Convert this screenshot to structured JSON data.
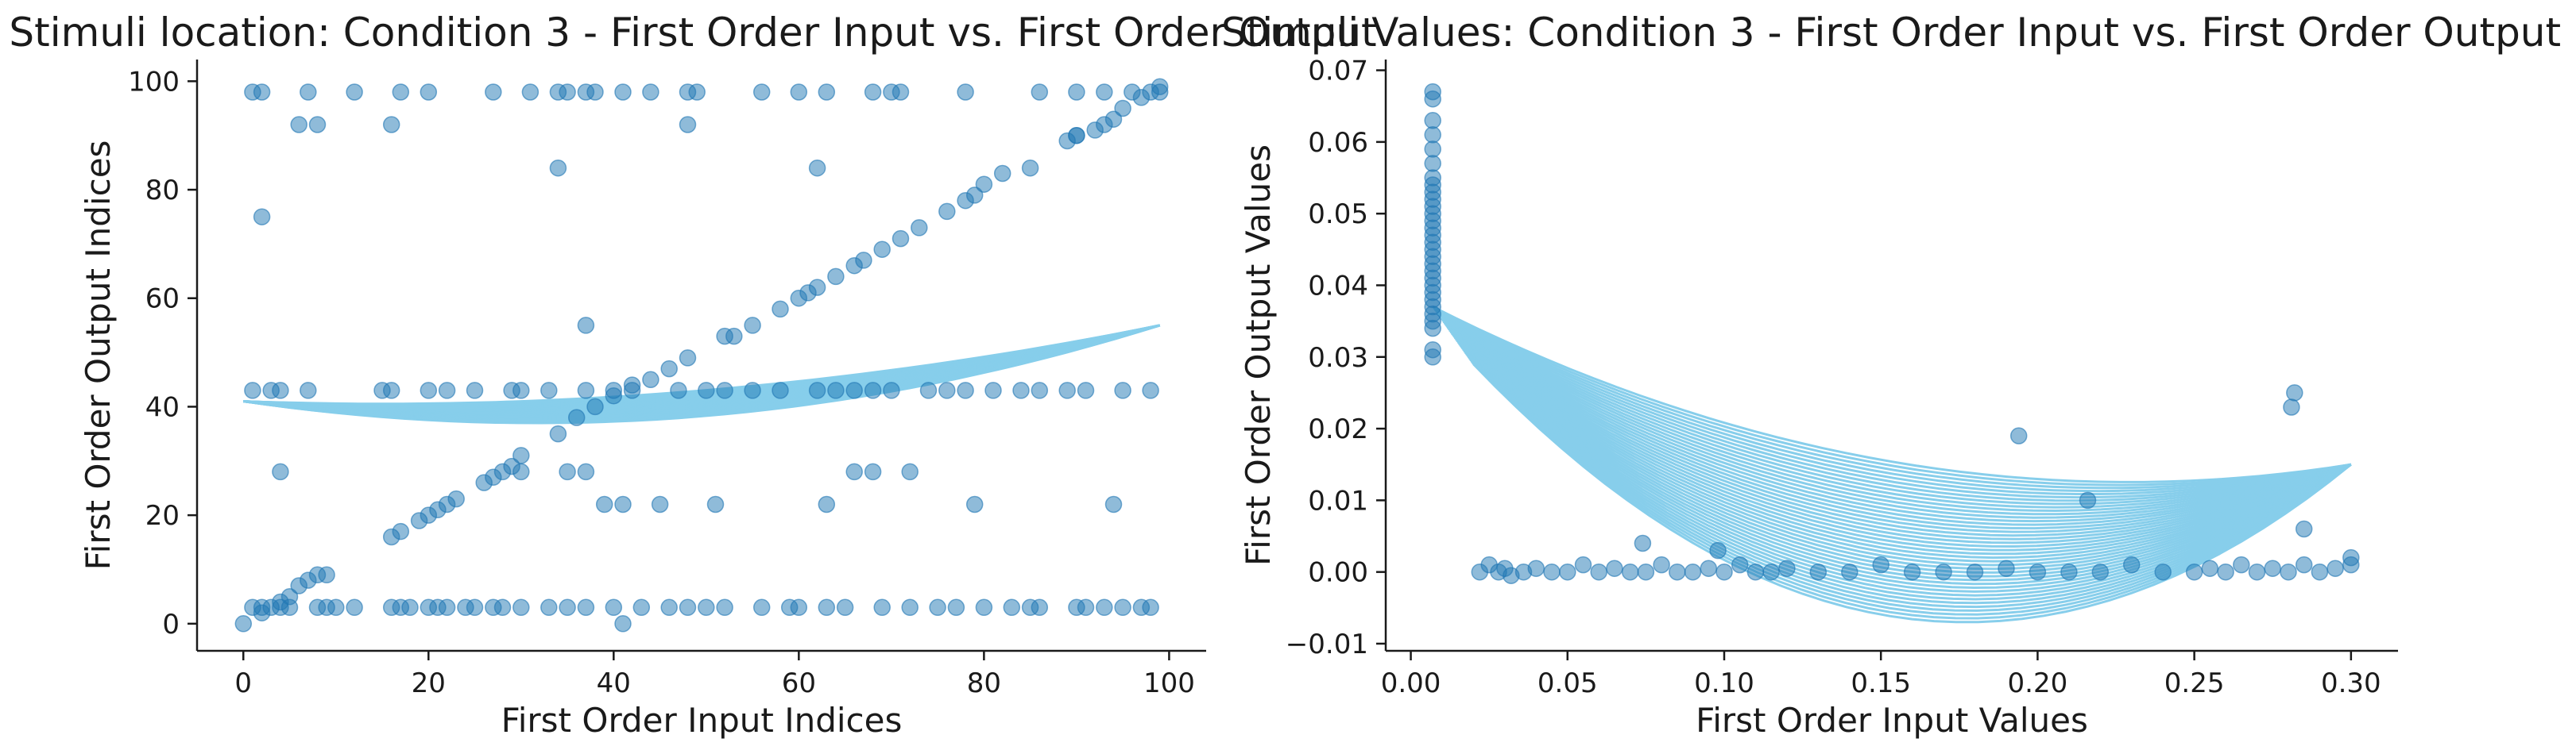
{
  "colors": {
    "points": "#1f77b4",
    "curve": "#87ceeb",
    "axis": "#1a1a1a"
  },
  "chart_data": [
    {
      "type": "scatter",
      "title": "Stimuli location: Condition 3 - First Order Input vs. First Order Output",
      "xlabel": "First Order Input Indices",
      "ylabel": "First Order Output Indices",
      "xlim": [
        -5,
        104
      ],
      "ylim": [
        -5,
        104
      ],
      "xticks": [
        0,
        20,
        40,
        60,
        80,
        100
      ],
      "yticks": [
        0,
        20,
        40,
        60,
        80,
        100
      ],
      "xtick_labels": [
        "0",
        "20",
        "40",
        "60",
        "80",
        "100"
      ],
      "ytick_labels": [
        "0",
        "20",
        "40",
        "60",
        "80",
        "100"
      ],
      "grid": false,
      "series": [
        {
          "kind": "points",
          "x": [
            0,
            2,
            2,
            4,
            5,
            6,
            7,
            8,
            9,
            16,
            17,
            19,
            20,
            21,
            22,
            23,
            26,
            27,
            28,
            29,
            30,
            34,
            36,
            38,
            40,
            42,
            44,
            46,
            48,
            52,
            53,
            55,
            58,
            60,
            61,
            62,
            64,
            66,
            67,
            69,
            71,
            73,
            76,
            78,
            79,
            80,
            82,
            85,
            89,
            90,
            92,
            93,
            95,
            97,
            99,
            1,
            2,
            7,
            12,
            17,
            20,
            27,
            31,
            34,
            35,
            37,
            38,
            41,
            44,
            48,
            49,
            56,
            60,
            63,
            68,
            70,
            71,
            78,
            86,
            90,
            93,
            96,
            98,
            99,
            6,
            8,
            16,
            34,
            37,
            48,
            62,
            90,
            94,
            2,
            1,
            3,
            4,
            7,
            15,
            16,
            20,
            22,
            25,
            29,
            30,
            33,
            37,
            40,
            42,
            47,
            50,
            52,
            55,
            58,
            62,
            64,
            66,
            68,
            70,
            74,
            76,
            78,
            81,
            84,
            86,
            89,
            91,
            95,
            98,
            4,
            8,
            10,
            17,
            20,
            22,
            25,
            28,
            30,
            33,
            35,
            37,
            40,
            41,
            43,
            46,
            48,
            50,
            52,
            56,
            59,
            60,
            63,
            65,
            69,
            72,
            75,
            77,
            80,
            83,
            85,
            86,
            90,
            91,
            93,
            95,
            97,
            98,
            1,
            3,
            5,
            9,
            12,
            16,
            18,
            21,
            24,
            27,
            4,
            30,
            35,
            37,
            39,
            41,
            45,
            51,
            63,
            66,
            68,
            72,
            79,
            94
          ],
          "y": [
            0,
            2,
            3,
            4,
            5,
            7,
            8,
            9,
            9,
            16,
            17,
            19,
            20,
            21,
            22,
            23,
            26,
            27,
            28,
            29,
            31,
            35,
            38,
            40,
            42,
            44,
            45,
            47,
            49,
            53,
            53,
            55,
            58,
            60,
            61,
            62,
            64,
            66,
            67,
            69,
            71,
            73,
            76,
            78,
            79,
            81,
            83,
            84,
            89,
            90,
            91,
            92,
            95,
            97,
            98,
            98,
            98,
            98,
            98,
            98,
            98,
            98,
            98,
            98,
            98,
            98,
            98,
            98,
            98,
            98,
            98,
            98,
            98,
            98,
            98,
            98,
            98,
            98,
            98,
            98,
            98,
            98,
            98,
            99,
            92,
            92,
            92,
            84,
            55,
            92,
            84,
            90,
            93,
            75,
            43,
            43,
            43,
            43,
            43,
            43,
            43,
            43,
            43,
            43,
            43,
            43,
            43,
            43,
            43,
            43,
            43,
            43,
            43,
            43,
            43,
            43,
            43,
            43,
            43,
            43,
            43,
            43,
            43,
            43,
            43,
            43,
            43,
            43,
            43,
            3,
            3,
            3,
            3,
            3,
            3,
            3,
            3,
            3,
            3,
            3,
            3,
            3,
            0,
            3,
            3,
            3,
            3,
            3,
            3,
            3,
            3,
            3,
            3,
            3,
            3,
            3,
            3,
            3,
            3,
            3,
            3,
            3,
            3,
            3,
            3,
            3,
            3,
            3,
            3,
            3,
            3,
            3,
            3,
            3,
            3,
            3,
            3,
            28,
            28,
            28,
            28,
            22,
            22,
            22,
            22,
            22,
            28,
            28,
            28,
            22,
            22
          ]
        },
        {
          "kind": "curve-fan",
          "description_note": "",
          "start": [
            0,
            41
          ],
          "end": [
            99,
            55
          ],
          "min_y_range": [
            37,
            41
          ],
          "min_x": 30,
          "count": 40
        }
      ]
    },
    {
      "type": "scatter",
      "title": "Stimuli Values: Condition 3 - First Order Input vs. First Order Output",
      "xlabel": "First Order Input Values",
      "ylabel": "First Order Output Values",
      "xlim": [
        -0.008,
        0.315
      ],
      "ylim": [
        -0.011,
        0.0715
      ],
      "xticks": [
        0.0,
        0.05,
        0.1,
        0.15,
        0.2,
        0.25,
        0.3
      ],
      "yticks": [
        -0.01,
        0.0,
        0.01,
        0.02,
        0.03,
        0.04,
        0.05,
        0.06,
        0.07
      ],
      "xtick_labels": [
        "0.00",
        "0.05",
        "0.10",
        "0.15",
        "0.20",
        "0.25",
        "0.30"
      ],
      "ytick_labels": [
        "−0.01",
        "0.00",
        "0.01",
        "0.02",
        "0.03",
        "0.04",
        "0.05",
        "0.06",
        "0.07"
      ],
      "grid": false,
      "series": [
        {
          "kind": "points",
          "x": [
            0.007,
            0.007,
            0.007,
            0.007,
            0.007,
            0.007,
            0.007,
            0.007,
            0.007,
            0.007,
            0.007,
            0.007,
            0.007,
            0.007,
            0.007,
            0.007,
            0.007,
            0.007,
            0.007,
            0.007,
            0.007,
            0.007,
            0.007,
            0.007,
            0.007,
            0.007,
            0.007,
            0.007,
            0.007,
            0.007,
            0.022,
            0.025,
            0.028,
            0.032,
            0.036,
            0.04,
            0.045,
            0.05,
            0.055,
            0.06,
            0.065,
            0.07,
            0.075,
            0.08,
            0.085,
            0.09,
            0.095,
            0.1,
            0.105,
            0.11,
            0.115,
            0.12,
            0.13,
            0.14,
            0.15,
            0.16,
            0.17,
            0.18,
            0.19,
            0.2,
            0.21,
            0.22,
            0.23,
            0.24,
            0.25,
            0.255,
            0.26,
            0.265,
            0.27,
            0.275,
            0.28,
            0.285,
            0.29,
            0.295,
            0.3,
            0.074,
            0.098,
            0.194,
            0.216,
            0.281,
            0.282,
            0.285,
            0.3,
            0.03
          ],
          "y": [
            0.067,
            0.066,
            0.063,
            0.061,
            0.059,
            0.057,
            0.055,
            0.054,
            0.053,
            0.052,
            0.051,
            0.05,
            0.049,
            0.048,
            0.047,
            0.046,
            0.045,
            0.044,
            0.043,
            0.042,
            0.041,
            0.04,
            0.039,
            0.038,
            0.037,
            0.036,
            0.035,
            0.034,
            0.031,
            0.03,
            0.0,
            0.001,
            0.0,
            -0.0005,
            0.0,
            0.0005,
            0.0,
            0.0,
            0.001,
            0.0,
            0.0005,
            0.0,
            0.0,
            0.001,
            0.0,
            0.0,
            0.0005,
            0.0,
            0.001,
            0.0,
            0.0,
            0.0005,
            0.0,
            0.0,
            0.001,
            0.0,
            0.0,
            0.0,
            0.0005,
            0.0,
            0.0,
            0.0,
            0.001,
            0.0,
            0.0,
            0.0005,
            0.0,
            0.001,
            0.0,
            0.0005,
            0.0,
            0.001,
            0.0,
            0.0005,
            0.002,
            0.004,
            0.003,
            0.019,
            0.01,
            0.023,
            0.025,
            0.006,
            0.001,
            0.0005
          ]
        },
        {
          "kind": "curve-fan",
          "start_range_y": [
            0.029,
            0.037
          ],
          "start_x_range": [
            0.007,
            0.02
          ],
          "end": [
            0.3,
            0.015
          ],
          "min_x": 0.175,
          "min_y_range": [
            -0.007,
            0.014
          ],
          "count": 40
        }
      ]
    }
  ]
}
